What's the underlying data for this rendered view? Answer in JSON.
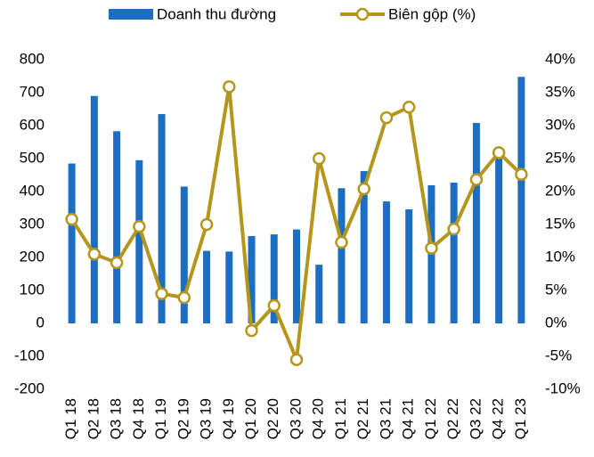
{
  "chart_data": {
    "type": "bar",
    "categories": [
      "Q1 18",
      "Q2 18",
      "Q3 18",
      "Q4 18",
      "Q1 19",
      "Q2 19",
      "Q3 19",
      "Q4 19",
      "Q1 20",
      "Q2 20",
      "Q3 20",
      "Q4 20",
      "Q1 21",
      "Q2 21",
      "Q3 21",
      "Q4 21",
      "Q1 22",
      "Q2 22",
      "Q3 22",
      "Q4 22",
      "Q1 23"
    ],
    "series": [
      {
        "name": "Doanh thu đường",
        "type": "bar",
        "color": "#1b6ec2",
        "values": [
          485,
          690,
          583,
          495,
          635,
          415,
          220,
          218,
          265,
          270,
          285,
          178,
          410,
          462,
          370,
          346,
          419,
          427,
          608,
          500,
          748
        ]
      },
      {
        "name": "Biên gộp (%)",
        "type": "line",
        "axis": "y2",
        "color": "#b5961c",
        "values": [
          15.8,
          10.5,
          9.2,
          14.7,
          4.5,
          3.9,
          15,
          35.9,
          -1.1,
          2.7,
          -5.5,
          25,
          12.3,
          20.4,
          31.2,
          32.8,
          11.4,
          14.3,
          21.8,
          25.9,
          22.6
        ]
      }
    ],
    "ylim": [
      -200,
      800
    ],
    "yticks": [
      -200,
      -100,
      0,
      100,
      200,
      300,
      400,
      500,
      600,
      700,
      800
    ],
    "y2lim": [
      -10,
      40
    ],
    "y2ticks": [
      {
        "value": -10,
        "label": "-10%"
      },
      {
        "value": -5,
        "label": "-5%"
      },
      {
        "value": 0,
        "label": "0%"
      },
      {
        "value": 5,
        "label": "5%"
      },
      {
        "value": 10,
        "label": "10%"
      },
      {
        "value": 15,
        "label": "15%"
      },
      {
        "value": 20,
        "label": "20%"
      },
      {
        "value": 25,
        "label": "25%"
      },
      {
        "value": 30,
        "label": "30%"
      },
      {
        "value": 35,
        "label": "35%"
      },
      {
        "value": 40,
        "label": "40%"
      }
    ],
    "grid": false,
    "legend": "top"
  }
}
